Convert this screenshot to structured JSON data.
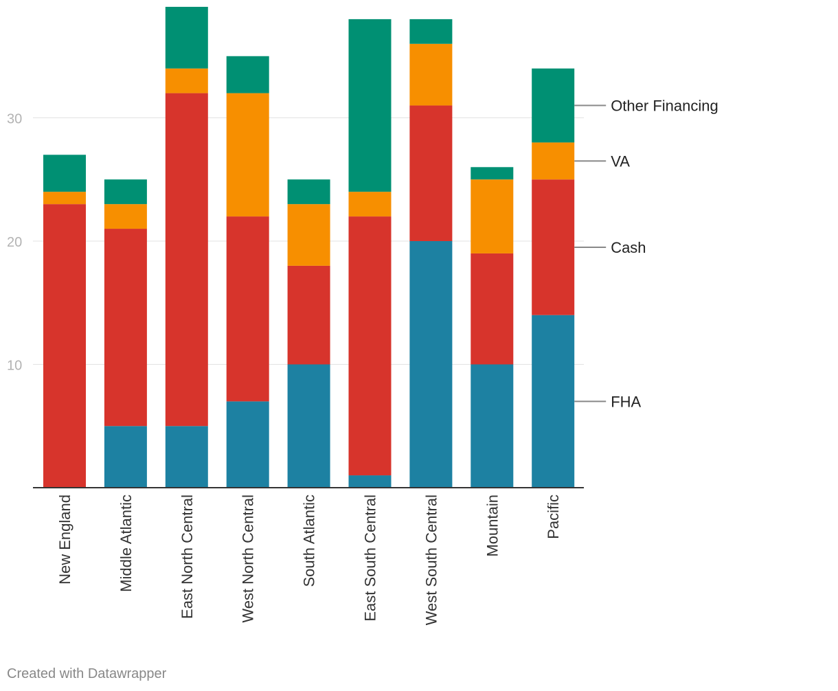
{
  "chart_data": {
    "type": "bar",
    "stacked": true,
    "categories": [
      "New England",
      "Middle Atlantic",
      "East North Central",
      "West North Central",
      "South Atlantic",
      "East South Central",
      "West South Central",
      "Mountain",
      "Pacific"
    ],
    "series": [
      {
        "name": "FHA",
        "color": "#1d81a2",
        "values": [
          0,
          5,
          5,
          7,
          10,
          1,
          20,
          10,
          14
        ]
      },
      {
        "name": "Cash",
        "color": "#d7342c",
        "values": [
          23,
          16,
          27,
          15,
          8,
          21,
          11,
          9,
          11
        ]
      },
      {
        "name": "VA",
        "color": "#f78f00",
        "values": [
          1,
          2,
          2,
          10,
          5,
          2,
          5,
          6,
          3
        ]
      },
      {
        "name": "Other Financing",
        "color": "#009073",
        "values": [
          3,
          2,
          5,
          3,
          2,
          14,
          2,
          1,
          6
        ]
      }
    ],
    "y_ticks": [
      10,
      20,
      30
    ],
    "ylim": [
      0,
      39
    ],
    "grid": true,
    "legend_placement": "right, labels attached to last bar"
  },
  "footer": {
    "credit": "Created with Datawrapper"
  }
}
